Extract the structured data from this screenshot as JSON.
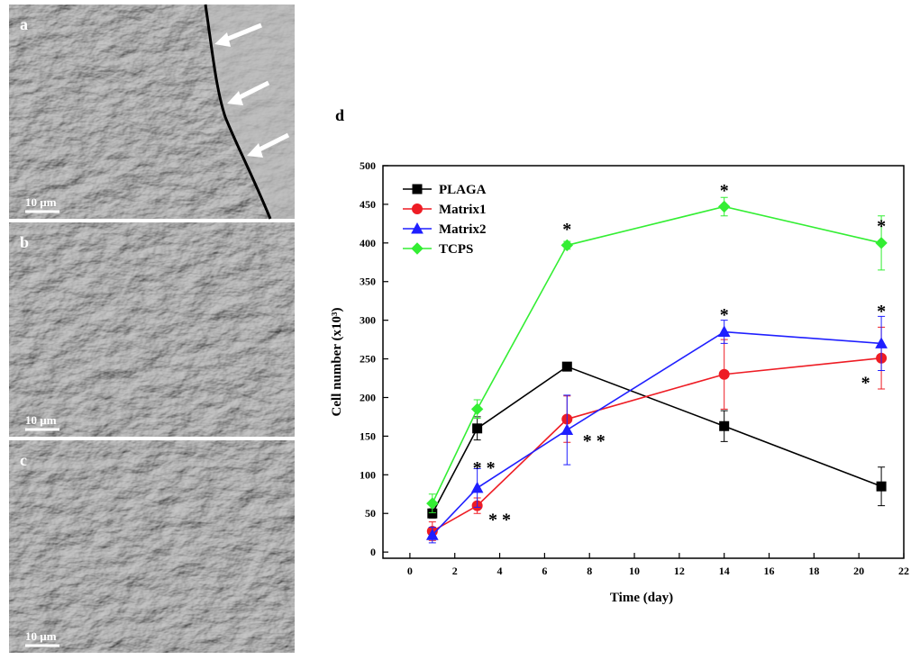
{
  "panels": [
    {
      "label": "a",
      "scale": "10 µm"
    },
    {
      "label": "b",
      "scale": "10 µm"
    },
    {
      "label": "c",
      "scale": "10 µm"
    }
  ],
  "chart_data": {
    "type": "line",
    "panel_label": "d",
    "x_label": "Time (day)",
    "y_label": "Cell number (x10³)",
    "x": [
      1,
      3,
      7,
      14,
      21
    ],
    "series": [
      {
        "name": "PLAGA",
        "color": "#000000",
        "marker": "square",
        "values": [
          50,
          160,
          240,
          163,
          85
        ],
        "errors": [
          6,
          15,
          5,
          20,
          25
        ]
      },
      {
        "name": "Matrix1",
        "color": "#ee1c24",
        "marker": "circle",
        "values": [
          27,
          60,
          172,
          230,
          251
        ],
        "errors": [
          12,
          10,
          30,
          45,
          40
        ]
      },
      {
        "name": "Matrix2",
        "color": "#1f1fff",
        "marker": "triangle",
        "values": [
          22,
          83,
          158,
          285,
          270
        ],
        "errors": [
          10,
          25,
          45,
          15,
          35
        ]
      },
      {
        "name": "TCPS",
        "color": "#33ee33",
        "marker": "diamond",
        "values": [
          63,
          185,
          397,
          447,
          400
        ],
        "errors": [
          12,
          12,
          5,
          12,
          35
        ]
      }
    ],
    "annotations": [
      {
        "text": "*",
        "x": 7,
        "y": 422
      },
      {
        "text": "*",
        "x": 14,
        "y": 472
      },
      {
        "text": "*",
        "x": 21,
        "y": 426
      },
      {
        "text": "*",
        "x": 14,
        "y": 311
      },
      {
        "text": "*",
        "x": 21,
        "y": 316
      },
      {
        "text": "*",
        "x": 20.3,
        "y": 223
      },
      {
        "text": "* *",
        "x": 3.3,
        "y": 113
      },
      {
        "text": "* *",
        "x": 8.2,
        "y": 148
      },
      {
        "text": "* *",
        "x": 4,
        "y": 46
      }
    ],
    "xlim": [
      -1.2,
      22
    ],
    "ylim": [
      -8,
      500
    ],
    "xticks": [
      0,
      2,
      4,
      6,
      8,
      10,
      12,
      14,
      16,
      18,
      20,
      22
    ],
    "yticks": [
      0,
      50,
      100,
      150,
      200,
      250,
      300,
      350,
      400,
      450,
      500
    ],
    "legend": "upper left"
  }
}
